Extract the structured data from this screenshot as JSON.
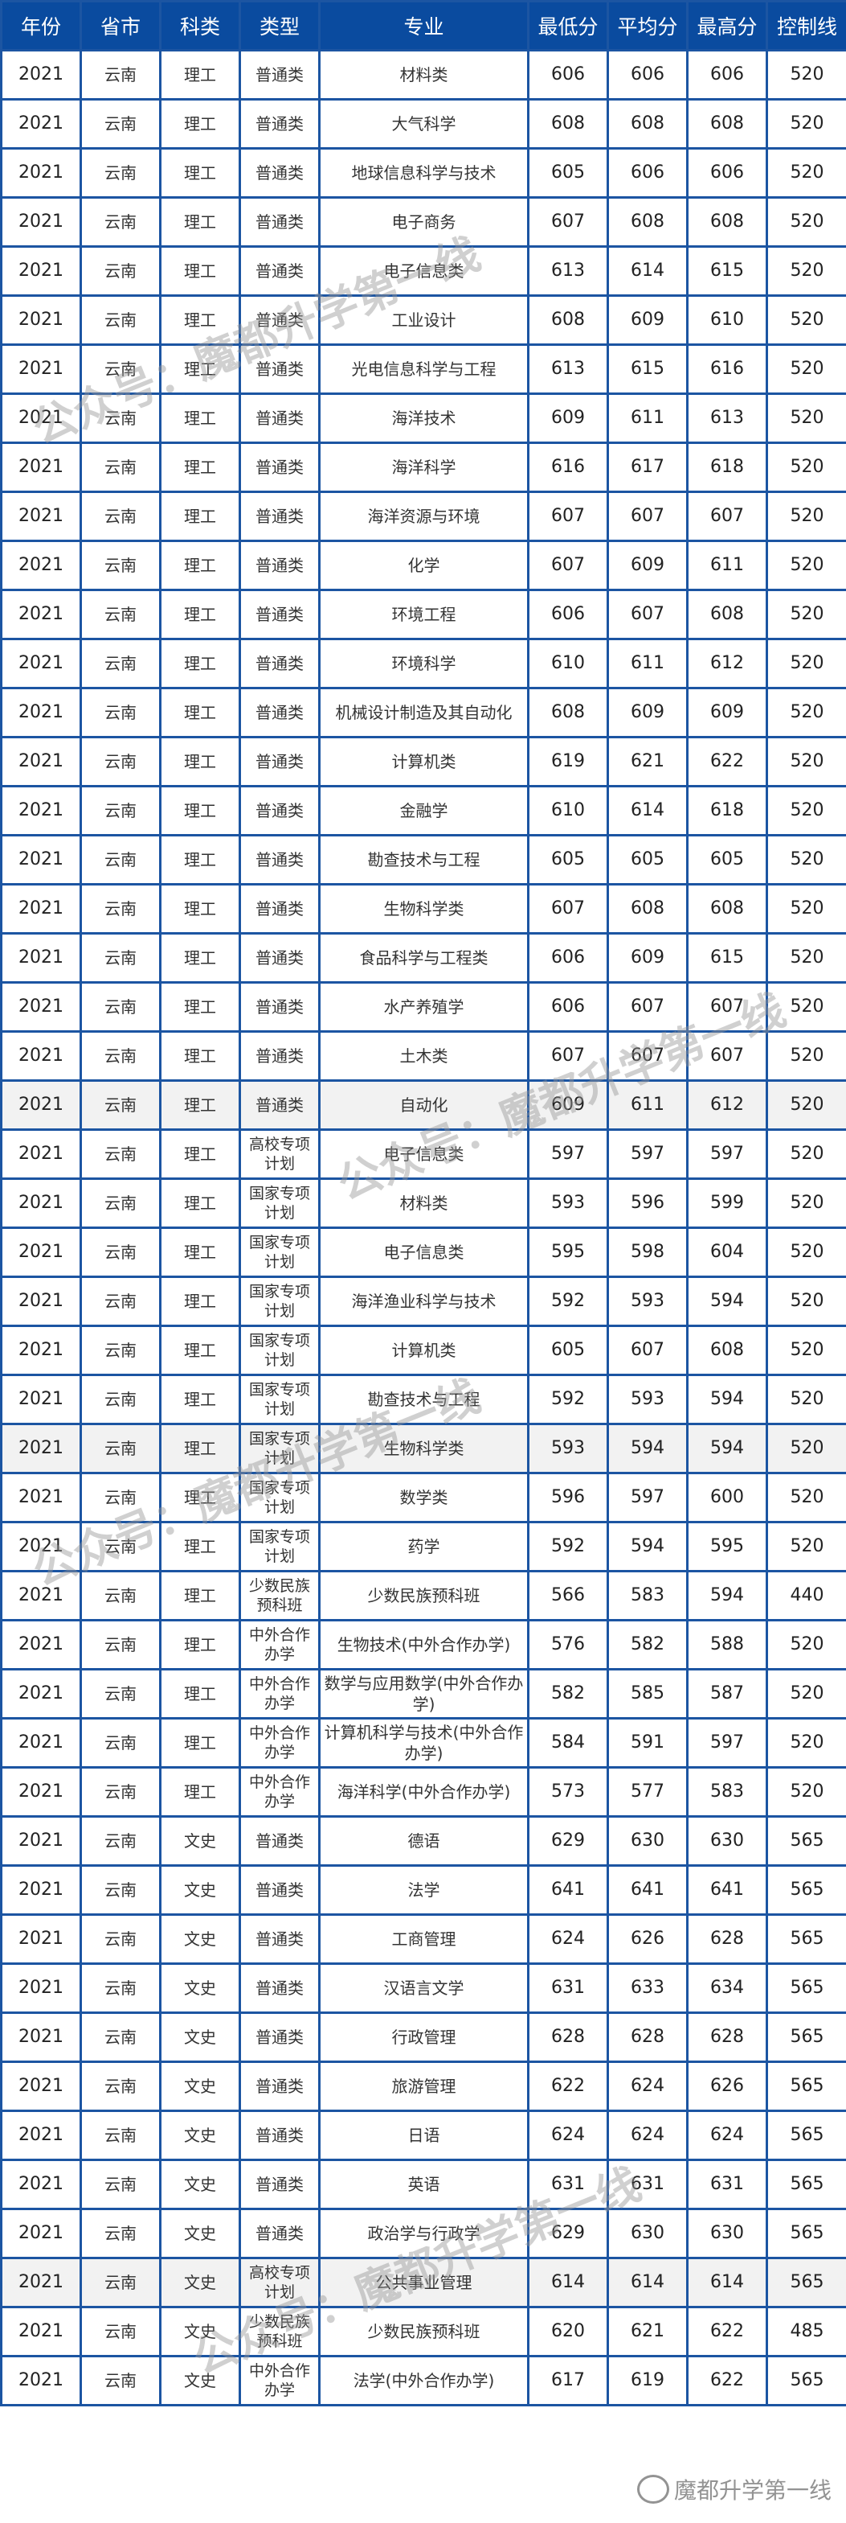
{
  "colors": {
    "header_bg": "#0a4b9f",
    "border": "#1c55a2",
    "highlight_row": "#f2f2f2"
  },
  "table": {
    "headers": [
      "年份",
      "省市",
      "科类",
      "类型",
      "专业",
      "最低分",
      "平均分",
      "最高分",
      "控制线"
    ],
    "rows": [
      [
        "2021",
        "云南",
        "理工",
        "普通类",
        "材料类",
        "606",
        "606",
        "606",
        "520"
      ],
      [
        "2021",
        "云南",
        "理工",
        "普通类",
        "大气科学",
        "608",
        "608",
        "608",
        "520"
      ],
      [
        "2021",
        "云南",
        "理工",
        "普通类",
        "地球信息科学与技术",
        "605",
        "606",
        "606",
        "520"
      ],
      [
        "2021",
        "云南",
        "理工",
        "普通类",
        "电子商务",
        "607",
        "608",
        "608",
        "520"
      ],
      [
        "2021",
        "云南",
        "理工",
        "普通类",
        "电子信息类",
        "613",
        "614",
        "615",
        "520"
      ],
      [
        "2021",
        "云南",
        "理工",
        "普通类",
        "工业设计",
        "608",
        "609",
        "610",
        "520"
      ],
      [
        "2021",
        "云南",
        "理工",
        "普通类",
        "光电信息科学与工程",
        "613",
        "615",
        "616",
        "520"
      ],
      [
        "2021",
        "云南",
        "理工",
        "普通类",
        "海洋技术",
        "609",
        "611",
        "613",
        "520"
      ],
      [
        "2021",
        "云南",
        "理工",
        "普通类",
        "海洋科学",
        "616",
        "617",
        "618",
        "520"
      ],
      [
        "2021",
        "云南",
        "理工",
        "普通类",
        "海洋资源与环境",
        "607",
        "607",
        "607",
        "520"
      ],
      [
        "2021",
        "云南",
        "理工",
        "普通类",
        "化学",
        "607",
        "609",
        "611",
        "520"
      ],
      [
        "2021",
        "云南",
        "理工",
        "普通类",
        "环境工程",
        "606",
        "607",
        "608",
        "520"
      ],
      [
        "2021",
        "云南",
        "理工",
        "普通类",
        "环境科学",
        "610",
        "611",
        "612",
        "520"
      ],
      [
        "2021",
        "云南",
        "理工",
        "普通类",
        "机械设计制造及其自动化",
        "608",
        "609",
        "609",
        "520"
      ],
      [
        "2021",
        "云南",
        "理工",
        "普通类",
        "计算机类",
        "619",
        "621",
        "622",
        "520"
      ],
      [
        "2021",
        "云南",
        "理工",
        "普通类",
        "金融学",
        "610",
        "614",
        "618",
        "520"
      ],
      [
        "2021",
        "云南",
        "理工",
        "普通类",
        "勘查技术与工程",
        "605",
        "605",
        "605",
        "520"
      ],
      [
        "2021",
        "云南",
        "理工",
        "普通类",
        "生物科学类",
        "607",
        "608",
        "608",
        "520"
      ],
      [
        "2021",
        "云南",
        "理工",
        "普通类",
        "食品科学与工程类",
        "606",
        "609",
        "615",
        "520"
      ],
      [
        "2021",
        "云南",
        "理工",
        "普通类",
        "水产养殖学",
        "606",
        "607",
        "607",
        "520"
      ],
      [
        "2021",
        "云南",
        "理工",
        "普通类",
        "土木类",
        "607",
        "607",
        "607",
        "520"
      ],
      [
        "2021",
        "云南",
        "理工",
        "普通类",
        "自动化",
        "609",
        "611",
        "612",
        "520"
      ],
      [
        "2021",
        "云南",
        "理工",
        "高校专项计划",
        "电子信息类",
        "597",
        "597",
        "597",
        "520"
      ],
      [
        "2021",
        "云南",
        "理工",
        "国家专项计划",
        "材料类",
        "593",
        "596",
        "599",
        "520"
      ],
      [
        "2021",
        "云南",
        "理工",
        "国家专项计划",
        "电子信息类",
        "595",
        "598",
        "604",
        "520"
      ],
      [
        "2021",
        "云南",
        "理工",
        "国家专项计划",
        "海洋渔业科学与技术",
        "592",
        "593",
        "594",
        "520"
      ],
      [
        "2021",
        "云南",
        "理工",
        "国家专项计划",
        "计算机类",
        "605",
        "607",
        "608",
        "520"
      ],
      [
        "2021",
        "云南",
        "理工",
        "国家专项计划",
        "勘查技术与工程",
        "592",
        "593",
        "594",
        "520"
      ],
      [
        "2021",
        "云南",
        "理工",
        "国家专项计划",
        "生物科学类",
        "593",
        "594",
        "594",
        "520"
      ],
      [
        "2021",
        "云南",
        "理工",
        "国家专项计划",
        "数学类",
        "596",
        "597",
        "600",
        "520"
      ],
      [
        "2021",
        "云南",
        "理工",
        "国家专项计划",
        "药学",
        "592",
        "594",
        "595",
        "520"
      ],
      [
        "2021",
        "云南",
        "理工",
        "少数民族预科班",
        "少数民族预科班",
        "566",
        "583",
        "594",
        "440"
      ],
      [
        "2021",
        "云南",
        "理工",
        "中外合作办学",
        "生物技术(中外合作办学)",
        "576",
        "582",
        "588",
        "520"
      ],
      [
        "2021",
        "云南",
        "理工",
        "中外合作办学",
        "数学与应用数学(中外合作办学)",
        "582",
        "585",
        "587",
        "520"
      ],
      [
        "2021",
        "云南",
        "理工",
        "中外合作办学",
        "计算机科学与技术(中外合作办学)",
        "584",
        "591",
        "597",
        "520"
      ],
      [
        "2021",
        "云南",
        "理工",
        "中外合作办学",
        "海洋科学(中外合作办学)",
        "573",
        "577",
        "583",
        "520"
      ],
      [
        "2021",
        "云南",
        "文史",
        "普通类",
        "德语",
        "629",
        "630",
        "630",
        "565"
      ],
      [
        "2021",
        "云南",
        "文史",
        "普通类",
        "法学",
        "641",
        "641",
        "641",
        "565"
      ],
      [
        "2021",
        "云南",
        "文史",
        "普通类",
        "工商管理",
        "624",
        "626",
        "628",
        "565"
      ],
      [
        "2021",
        "云南",
        "文史",
        "普通类",
        "汉语言文学",
        "631",
        "633",
        "634",
        "565"
      ],
      [
        "2021",
        "云南",
        "文史",
        "普通类",
        "行政管理",
        "628",
        "628",
        "628",
        "565"
      ],
      [
        "2021",
        "云南",
        "文史",
        "普通类",
        "旅游管理",
        "622",
        "624",
        "626",
        "565"
      ],
      [
        "2021",
        "云南",
        "文史",
        "普通类",
        "日语",
        "624",
        "624",
        "624",
        "565"
      ],
      [
        "2021",
        "云南",
        "文史",
        "普通类",
        "英语",
        "631",
        "631",
        "631",
        "565"
      ],
      [
        "2021",
        "云南",
        "文史",
        "普通类",
        "政治学与行政学",
        "629",
        "630",
        "630",
        "565"
      ],
      [
        "2021",
        "云南",
        "文史",
        "高校专项计划",
        "公共事业管理",
        "614",
        "614",
        "614",
        "565"
      ],
      [
        "2021",
        "云南",
        "文史",
        "少数民族预科班",
        "少数民族预科班",
        "620",
        "621",
        "622",
        "485"
      ],
      [
        "2021",
        "云南",
        "文史",
        "中外合作办学",
        "法学(中外合作办学)",
        "617",
        "619",
        "622",
        "565"
      ]
    ],
    "highlighted_rows": [
      21,
      28,
      45
    ]
  },
  "watermark": {
    "text": "公众号：魔都升学第一线",
    "logo_text": "魔都升学第一线",
    "logo_icon": "wechat-icon"
  }
}
